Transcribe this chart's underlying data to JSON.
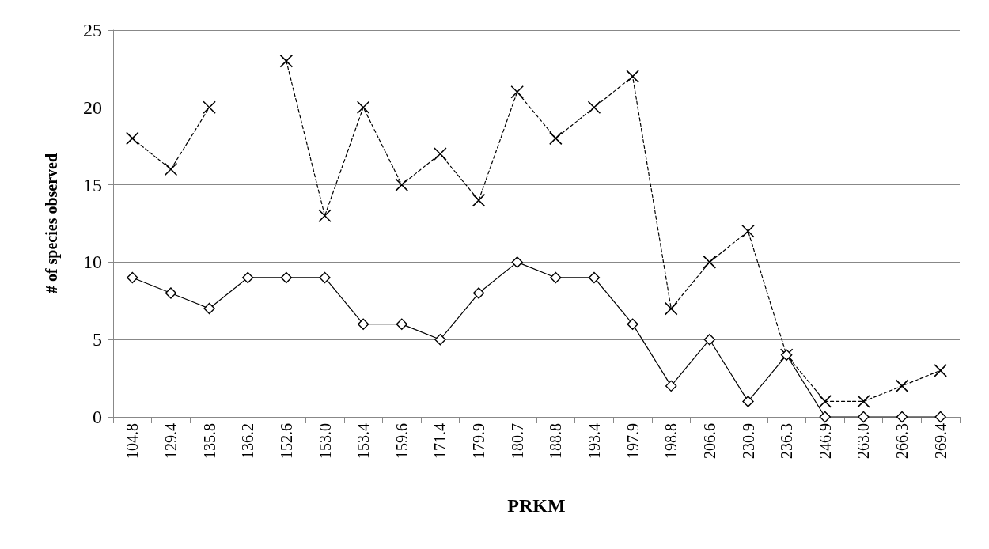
{
  "chart_data": {
    "type": "line",
    "xlabel": "PRKM",
    "ylabel": "# of species observed",
    "categories": [
      "104.8",
      "129.4",
      "135.8",
      "136.2",
      "152.6",
      "153.0",
      "153.4",
      "159.6",
      "171.4",
      "179.9",
      "180.7",
      "188.8",
      "193.4",
      "197.9",
      "198.8",
      "206.6",
      "230.9",
      "236.3",
      "246.9",
      "263.0",
      "266.3",
      "269.4"
    ],
    "series": [
      {
        "color": "#000000",
        "marker": "cross",
        "line_style": "dashed",
        "values": [
          18,
          16,
          20,
          null,
          23,
          13,
          20,
          15,
          17,
          14,
          21,
          18,
          20,
          22,
          7,
          10,
          12,
          4,
          1,
          1,
          2,
          3
        ]
      },
      {
        "color": "#000000",
        "marker": "diamond",
        "line_style": "solid",
        "values": [
          9,
          8,
          7,
          9,
          9,
          9,
          6,
          6,
          5,
          8,
          10,
          9,
          9,
          6,
          2,
          5,
          1,
          4,
          0,
          0,
          0,
          0
        ]
      }
    ],
    "ylim": [
      0,
      25
    ],
    "yticks": [
      0,
      5,
      10,
      15,
      20,
      25
    ],
    "grid": "y"
  }
}
